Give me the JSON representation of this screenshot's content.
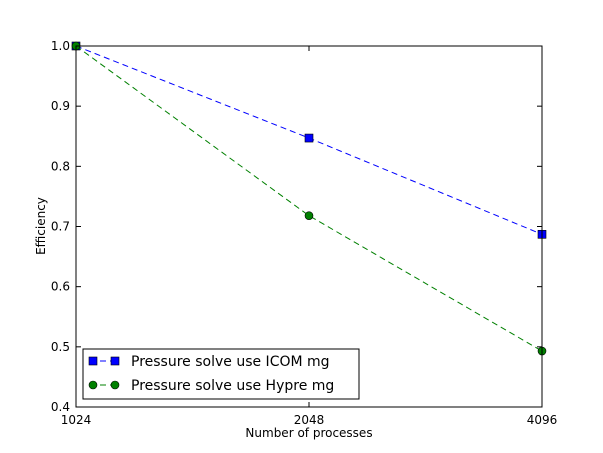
{
  "chart_data": {
    "type": "line",
    "title": "",
    "xlabel": "Number of processes",
    "ylabel": "Efficiency",
    "x": [
      1024,
      2048,
      4096
    ],
    "x_tick_labels": [
      "1024",
      "2048",
      "4096"
    ],
    "xlim": [
      1024,
      4096
    ],
    "xscale": "log2",
    "ylim": [
      0.4,
      1.0
    ],
    "y_ticks": [
      0.4,
      0.5,
      0.6,
      0.7,
      0.8,
      0.9,
      1.0
    ],
    "y_tick_labels": [
      "0.4",
      "0.5",
      "0.6",
      "0.7",
      "0.8",
      "0.9",
      "1.0"
    ],
    "grid": false,
    "legend": "bottom-left",
    "series": [
      {
        "name": "Pressure solve use ICOM mg",
        "values": [
          1.0,
          0.847,
          0.687
        ],
        "color": "#0000ff",
        "marker": "square",
        "linestyle": "dashed"
      },
      {
        "name": "Pressure solve use Hypre mg",
        "values": [
          1.0,
          0.718,
          0.493
        ],
        "color": "#008000",
        "marker": "circle",
        "linestyle": "dashed"
      }
    ]
  }
}
